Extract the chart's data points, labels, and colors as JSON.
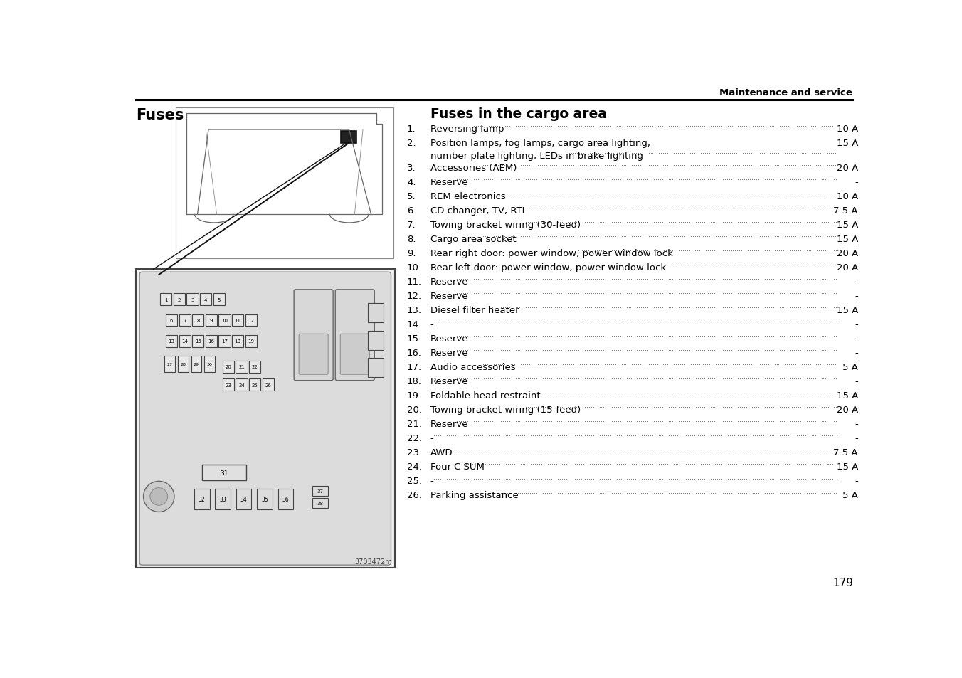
{
  "header_text": "Maintenance and service",
  "page_title": "Fuses",
  "section_title": "Fuses in the cargo area",
  "page_number": "179",
  "bg_color": "#ffffff",
  "fuse_entries": [
    {
      "num": "1.",
      "desc": "Reversing lamp",
      "desc2": "",
      "amp": "10 A"
    },
    {
      "num": "2.",
      "desc": "Position lamps, fog lamps, cargo area lighting,",
      "desc2": "number plate lighting, LEDs in brake lighting",
      "amp": "15 A"
    },
    {
      "num": "3.",
      "desc": "Accessories (AEM)",
      "desc2": "",
      "amp": "20 A"
    },
    {
      "num": "4.",
      "desc": "Reserve",
      "desc2": "",
      "amp": "-"
    },
    {
      "num": "5.",
      "desc": "REM electronics",
      "desc2": "",
      "amp": "10 A"
    },
    {
      "num": "6.",
      "desc": "CD changer, TV, RTI",
      "desc2": "",
      "amp": "7.5 A"
    },
    {
      "num": "7.",
      "desc": "Towing bracket wiring (30-feed)",
      "desc2": "",
      "amp": "15 A"
    },
    {
      "num": "8.",
      "desc": "Cargo area socket",
      "desc2": "",
      "amp": "15 A"
    },
    {
      "num": "9.",
      "desc": "Rear right door: power window, power window lock",
      "desc2": "",
      "amp": "20 A"
    },
    {
      "num": "10.",
      "desc": "Rear left door: power window, power window lock",
      "desc2": "",
      "amp": "20 A"
    },
    {
      "num": "11.",
      "desc": "Reserve",
      "desc2": "",
      "amp": "-"
    },
    {
      "num": "12.",
      "desc": "Reserve",
      "desc2": "",
      "amp": "-"
    },
    {
      "num": "13.",
      "desc": "Diesel filter heater",
      "desc2": "",
      "amp": "15 A"
    },
    {
      "num": "14.",
      "desc": "-",
      "desc2": "",
      "amp": "-"
    },
    {
      "num": "15.",
      "desc": "Reserve",
      "desc2": "",
      "amp": "-"
    },
    {
      "num": "16.",
      "desc": "Reserve",
      "desc2": "",
      "amp": "-"
    },
    {
      "num": "17.",
      "desc": "Audio accessories",
      "desc2": "",
      "amp": "5 A"
    },
    {
      "num": "18.",
      "desc": "Reserve",
      "desc2": "",
      "amp": "-"
    },
    {
      "num": "19.",
      "desc": "Foldable head restraint",
      "desc2": "",
      "amp": "15 A"
    },
    {
      "num": "20.",
      "desc": "Towing bracket wiring (15-feed)",
      "desc2": "",
      "amp": "20 A"
    },
    {
      "num": "21.",
      "desc": "Reserve",
      "desc2": "",
      "amp": "-"
    },
    {
      "num": "22.",
      "desc": "-",
      "desc2": "",
      "amp": "-"
    },
    {
      "num": "23.",
      "desc": "AWD",
      "desc2": "",
      "amp": "7.5 A"
    },
    {
      "num": "24.",
      "desc": "Four-C SUM",
      "desc2": "",
      "amp": "15 A"
    },
    {
      "num": "25.",
      "desc": "-",
      "desc2": "",
      "amp": "-"
    },
    {
      "num": "26.",
      "desc": "Parking assistance",
      "desc2": "",
      "amp": "5 A"
    }
  ],
  "diagram_caption": "3703472m",
  "left_panel_color": "#e8e8e8",
  "fuse_box_bg": "#d0d0d0",
  "fuse_fill": "#e0e0e0",
  "fuse_edge": "#555555",
  "relay_fill": "#c8c8c8"
}
